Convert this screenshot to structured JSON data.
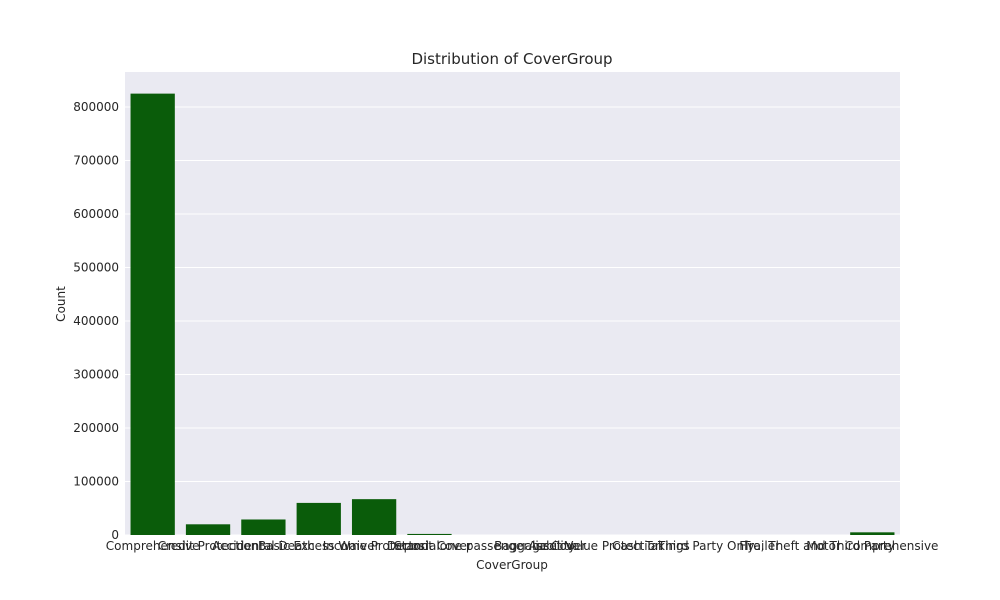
{
  "chart_data": {
    "type": "bar",
    "title": "Distribution of CoverGroup",
    "xlabel": "CoverGroup",
    "ylabel": "Count",
    "ylim": [
      0,
      850000
    ],
    "yticks": [
      0,
      100000,
      200000,
      300000,
      400000,
      500000,
      600000,
      700000,
      800000
    ],
    "grid": true,
    "bar_color": "#0a5c0a",
    "plot_background": "#eaeaf2",
    "categories": [
      "Comprehensive",
      "Credit Protection",
      "Accidental Death",
      "Basic Excess Waiver",
      "Income Protector",
      "Deposit Cover",
      "Standalone passenger liability",
      "Baggage Cover",
      "Asset Value Protection",
      "Cash Takings",
      "Third Party Only",
      "Trailer",
      "Fire, Theft and Third Party",
      "Motor Comprehensive"
    ],
    "values": [
      825000,
      20000,
      29000,
      60000,
      67000,
      2000,
      0,
      0,
      0,
      0,
      0,
      0,
      0,
      5000
    ]
  }
}
